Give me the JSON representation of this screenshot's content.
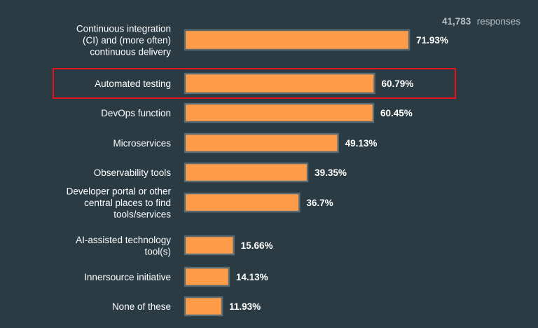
{
  "header": {
    "response_count": "41,783",
    "response_word": "responses"
  },
  "colors": {
    "background": "#2a3b43",
    "bar_fill": "#ff9c4a",
    "bar_stroke": "#5b6b72",
    "highlight": "#e8141b"
  },
  "highlighted_category": "Automated testing",
  "chart_data": {
    "type": "bar",
    "orientation": "horizontal",
    "title": "",
    "xlabel": "",
    "ylabel": "",
    "xlim": [
      0,
      100
    ],
    "categories": [
      "Continuous integration (CI) and (more often) continuous delivery",
      "Automated testing",
      "DevOps function",
      "Microservices",
      "Observability tools",
      "Developer portal or other central places to find tools/services",
      "AI-assisted technology tool(s)",
      "Innersource initiative",
      "None of these"
    ],
    "category_label_lines": [
      [
        "Continuous integration",
        "(CI) and (more often)",
        "continuous delivery"
      ],
      [
        "Automated testing"
      ],
      [
        "DevOps function"
      ],
      [
        "Microservices"
      ],
      [
        "Observability tools"
      ],
      [
        "Developer portal or other",
        "central places to find",
        "tools/services"
      ],
      [
        "AI-assisted technology",
        "tool(s)"
      ],
      [
        "Innersource initiative"
      ],
      [
        "None of these"
      ]
    ],
    "values": [
      71.93,
      60.79,
      60.45,
      49.13,
      39.35,
      36.7,
      15.66,
      14.13,
      11.93
    ],
    "value_labels": [
      "71.93%",
      "60.79%",
      "60.45%",
      "49.13%",
      "39.35%",
      "36.7%",
      "15.66%",
      "14.13%",
      "11.93%"
    ],
    "grid": false,
    "legend": "none"
  }
}
